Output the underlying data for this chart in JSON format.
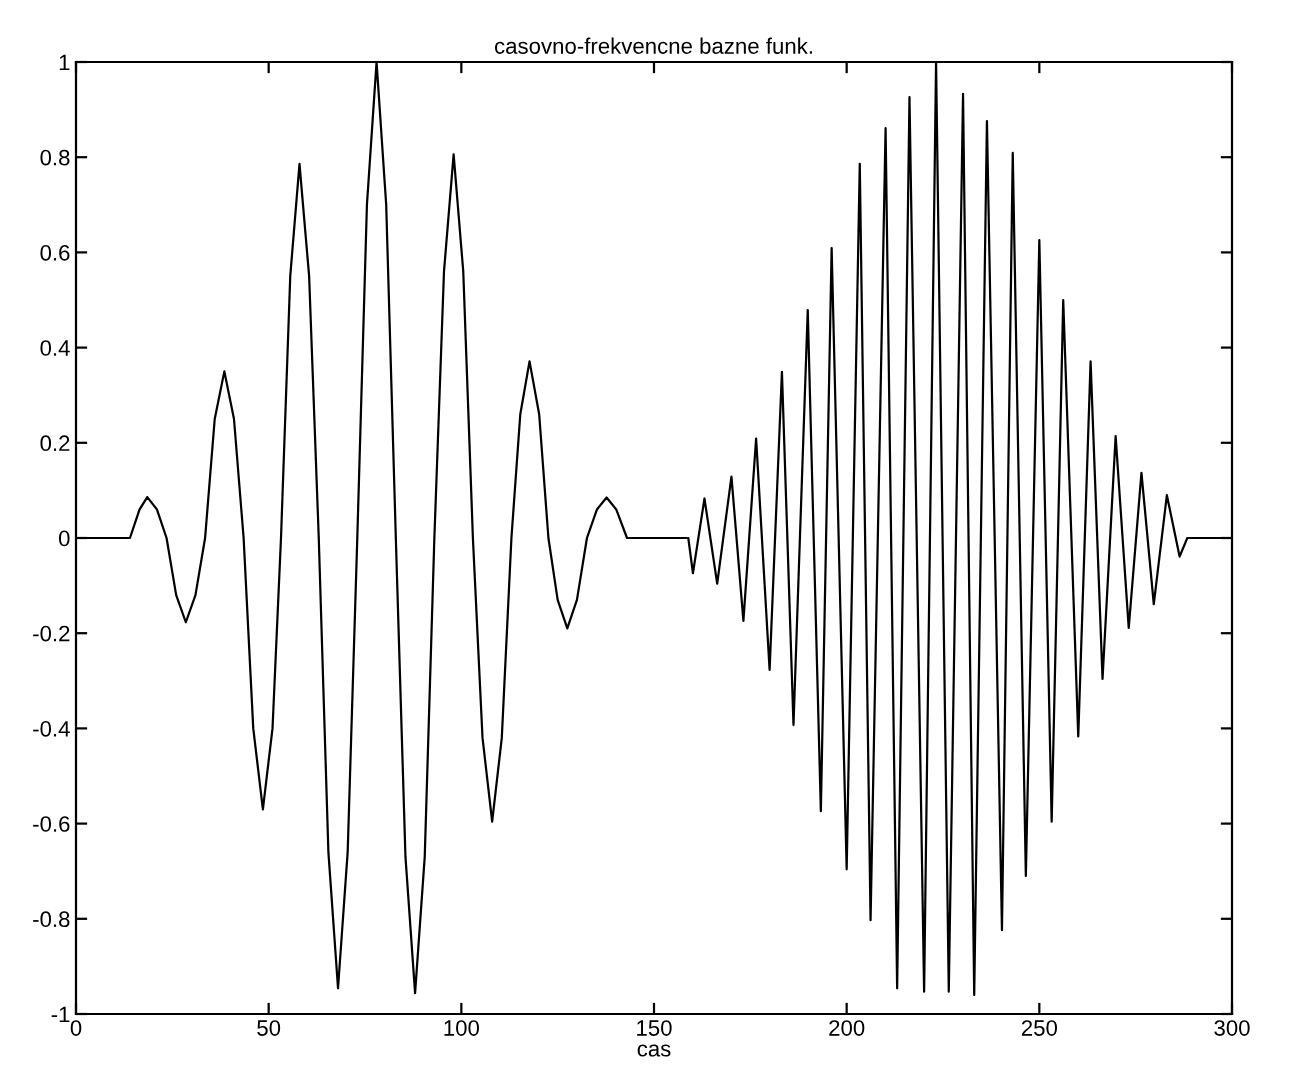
{
  "chart_data": {
    "type": "line",
    "title": "casovno-frekvencne bazne funk.",
    "xlabel": "cas",
    "x": [
      0,
      14,
      16.5,
      18.5,
      21,
      23.5,
      26,
      28.5,
      31,
      33.5,
      36,
      38.5,
      41,
      43.5,
      46,
      48.5,
      51,
      53.2,
      55.6,
      58,
      60.5,
      63,
      65.5,
      68,
      70.5,
      73,
      75.5,
      78,
      80.5,
      83,
      85.5,
      88,
      90.5,
      93,
      95.5,
      98,
      100.5,
      103,
      105.5,
      108,
      110.5,
      113,
      115.3,
      117.7,
      120.2,
      122.6,
      125,
      127.5,
      130,
      132.6,
      135.2,
      137.7,
      140.2,
      143,
      158.9,
      160.1,
      163.1,
      166.4,
      170.1,
      173.2,
      176.5,
      180.0,
      183.2,
      186.2,
      189.9,
      193.3,
      196.1,
      200.0,
      203.4,
      206.2,
      210.1,
      213.1,
      216.3,
      220.1,
      223.2,
      226.5,
      230.2,
      233.1,
      236.4,
      240.3,
      243.1,
      246.5,
      250.0,
      253.2,
      256.2,
      260.1,
      263.3,
      266.4,
      269.8,
      273.2,
      276.5,
      279.7,
      283.1,
      286.4,
      288.4,
      300
    ],
    "series": [
      {
        "color": "#000000",
        "values": [
          0,
          0,
          0.06,
          0.086,
          0.06,
          0,
          -0.12,
          -0.177,
          -0.12,
          0,
          0.25,
          0.35,
          0.25,
          0,
          -0.4,
          -0.57,
          -0.4,
          0,
          0.55,
          0.786,
          0.55,
          0,
          -0.66,
          -0.946,
          -0.66,
          0,
          0.7,
          1.0,
          0.7,
          0,
          -0.67,
          -0.956,
          -0.67,
          0,
          0.56,
          0.806,
          0.56,
          0,
          -0.42,
          -0.596,
          -0.42,
          0,
          0.26,
          0.371,
          0.26,
          0,
          -0.13,
          -0.19,
          -0.13,
          0,
          0.06,
          0.085,
          0.06,
          0,
          0,
          -0.074,
          0.083,
          -0.096,
          0.129,
          -0.174,
          0.209,
          -0.277,
          0.349,
          -0.393,
          0.479,
          -0.574,
          0.609,
          -0.696,
          0.786,
          -0.803,
          0.861,
          -0.946,
          0.926,
          -0.953,
          1.0,
          -0.953,
          0.933,
          -0.96,
          0.876,
          -0.824,
          0.809,
          -0.71,
          0.626,
          -0.596,
          0.5,
          -0.417,
          0.371,
          -0.296,
          0.214,
          -0.189,
          0.137,
          -0.139,
          0.09,
          -0.039,
          0,
          0
        ]
      }
    ],
    "xlim": [
      0,
      300
    ],
    "ylim": [
      -1,
      1
    ],
    "xticks": [
      0,
      50,
      100,
      150,
      200,
      250,
      300
    ],
    "yticks": [
      -1,
      -0.8,
      -0.6,
      -0.4,
      -0.2,
      0,
      0.2,
      0.4,
      0.6,
      0.8,
      1
    ],
    "grid": false,
    "marker": "none",
    "line_style": "solid"
  }
}
